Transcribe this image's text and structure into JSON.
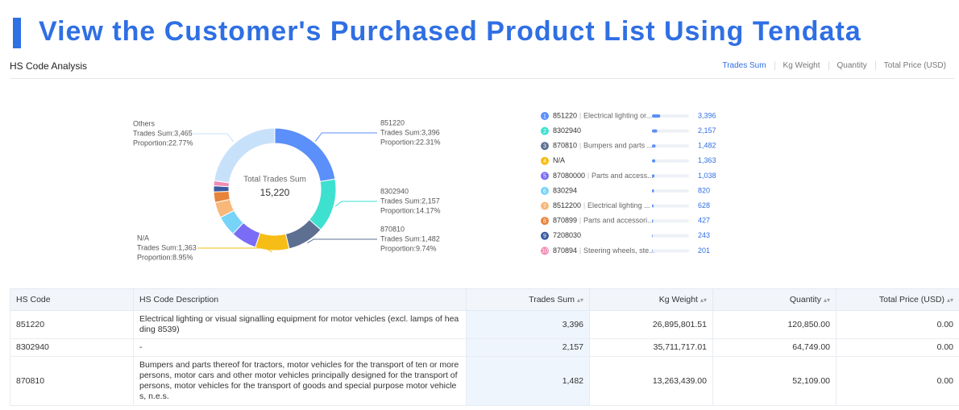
{
  "header": {
    "title": "View the Customer's Purchased Product List Using Tendata"
  },
  "panel": {
    "title": "HS Code Analysis",
    "tabs": [
      "Trades Sum",
      "Kg Weight",
      "Quantity",
      "Total Price (USD)"
    ],
    "active_tab": 0
  },
  "chart_data": {
    "type": "donut",
    "center_title": "Total Trades Sum",
    "center_value": "15,220",
    "categories": [
      "851220",
      "8302940",
      "870810",
      "N/A",
      "87080000",
      "830294",
      "8512200",
      "870899",
      "7208030",
      "870894",
      "Others"
    ],
    "values": [
      3396,
      2157,
      1482,
      1363,
      1038,
      820,
      628,
      427,
      243,
      201,
      3465
    ],
    "value_labels": [
      "Trades Sum:3,396",
      "Trades Sum:2,157",
      "Trades Sum:1,482",
      "Trades Sum:1,363",
      null,
      null,
      null,
      null,
      null,
      null,
      "Trades Sum:3,465"
    ],
    "proportion_labels": [
      "Proportion:22.31%",
      "Proportion:14.17%",
      "Proportion:9.74%",
      "Proportion:8.95%",
      null,
      null,
      null,
      null,
      null,
      null,
      "Proportion:22.77%"
    ],
    "colors": [
      "#5b8ff9",
      "#3ee0d0",
      "#5d7092",
      "#f6bd16",
      "#7b6cf6",
      "#78d3f8",
      "#f8b87a",
      "#e8833a",
      "#3a5ba0",
      "#f08bb4",
      "#c8e1fb"
    ]
  },
  "ranking": {
    "ranks": [
      1,
      2,
      3,
      4,
      5,
      6,
      7,
      8,
      9,
      10
    ],
    "descriptions": [
      "Electrical lighting or...",
      null,
      "Bumpers and parts ...",
      null,
      "Parts and access...",
      null,
      "Electrical lighting ...",
      "Parts and accessori...",
      null,
      "Steering wheels, ste..."
    ],
    "value_labels": [
      "3,396",
      "2,157",
      "1,482",
      "1,363",
      "1,038",
      "820",
      "628",
      "427",
      "243",
      "201"
    ]
  },
  "table": {
    "columns": [
      "HS Code",
      "HS Code Description",
      "Trades Sum",
      "Kg Weight",
      "Quantity",
      "Total Price (USD)"
    ],
    "rows": [
      [
        "851220",
        "Electrical lighting or visual signalling equipment for motor vehicles (excl. lamps of heading 8539)",
        "3,396",
        "26,895,801.51",
        "120,850.00",
        "0.00"
      ],
      [
        "8302940",
        "-",
        "2,157",
        "35,711,717.01",
        "64,749.00",
        "0.00"
      ],
      [
        "870810",
        "Bumpers and parts thereof for tractors, motor vehicles for the transport of ten or more persons, motor cars and other motor vehicles principally designed for the transport of persons, motor vehicles for the transport of goods and special purpose motor vehicles, n.e.s.",
        "1,482",
        "13,263,439.00",
        "52,109.00",
        "0.00"
      ]
    ]
  }
}
